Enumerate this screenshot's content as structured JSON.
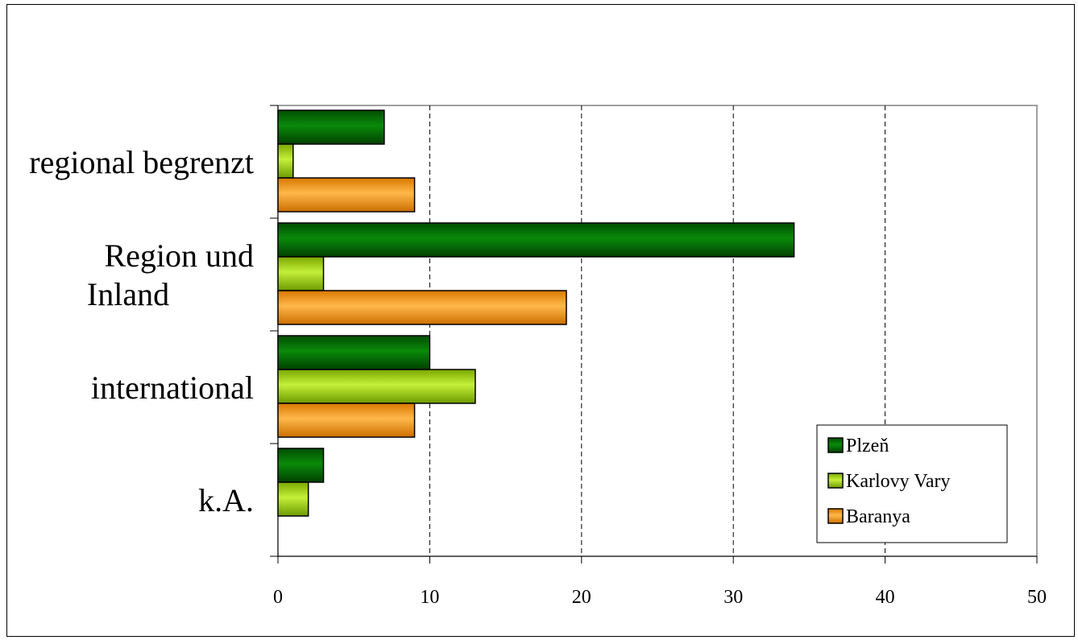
{
  "chart_data": {
    "type": "bar",
    "orientation": "horizontal",
    "categories": [
      "regional begrenzt",
      "Region und Inland",
      "international",
      "k.A."
    ],
    "category_lines": [
      [
        "regional begrenzt"
      ],
      [
        "Region und",
        "Inland"
      ],
      [
        "international"
      ],
      [
        "k.A."
      ]
    ],
    "series": [
      {
        "name": "Plzeň",
        "values": [
          7,
          34,
          10,
          3
        ],
        "color": "#006400"
      },
      {
        "name": "Karlovy Vary",
        "values": [
          1,
          3,
          13,
          2
        ],
        "color": "#99cc00"
      },
      {
        "name": "Baranya",
        "values": [
          9,
          19,
          9,
          0
        ],
        "color": "#ff9900"
      }
    ],
    "x_ticks": [
      0,
      10,
      20,
      30,
      40,
      50
    ],
    "xlim": [
      0,
      50
    ],
    "grid": "vertical dashed",
    "legend_position": "bottom-right",
    "title": "",
    "xlabel": "",
    "ylabel": ""
  }
}
